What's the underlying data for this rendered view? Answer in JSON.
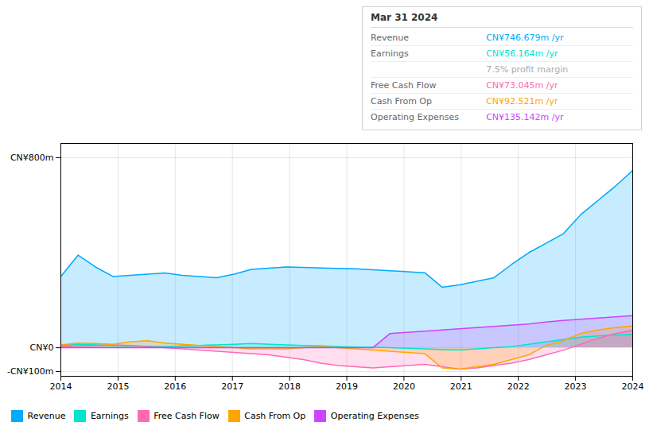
{
  "chart_data": {
    "type": "area",
    "title": "Mar 31 2024",
    "x": [
      2014,
      2014.303,
      2014.606,
      2014.909,
      2015.212,
      2015.515,
      2015.818,
      2016.121,
      2016.424,
      2016.727,
      2017.03,
      2017.333,
      2017.636,
      2017.939,
      2018.242,
      2018.545,
      2018.848,
      2019.152,
      2019.455,
      2019.758,
      2020.061,
      2020.364,
      2020.667,
      2020.97,
      2021.273,
      2021.576,
      2021.879,
      2022.182,
      2022.485,
      2022.788,
      2023.091,
      2023.394,
      2023.697,
      2024
    ],
    "series": [
      {
        "name": "Revenue",
        "color": "#00aaff",
        "values": [
          300,
          390,
          340,
          300,
          305,
          310,
          315,
          305,
          300,
          295,
          310,
          330,
          335,
          340,
          338,
          336,
          334,
          332,
          328,
          324,
          320,
          316,
          255,
          265,
          280,
          295,
          350,
          400,
          440,
          480,
          560,
          620,
          680,
          746
        ]
      },
      {
        "name": "Earnings",
        "color": "#00e5cc",
        "values": [
          10,
          15,
          12,
          10,
          8,
          6,
          5,
          8,
          10,
          12,
          15,
          18,
          15,
          12,
          10,
          8,
          5,
          3,
          2,
          0,
          -2,
          -5,
          -8,
          -10,
          -5,
          0,
          5,
          15,
          25,
          35,
          45,
          50,
          54,
          56
        ]
      },
      {
        "name": "Free Cash Flow",
        "color": "#ff69b4",
        "values": [
          5,
          8,
          10,
          12,
          10,
          5,
          0,
          -5,
          -10,
          -15,
          -20,
          -25,
          -30,
          -40,
          -50,
          -65,
          -75,
          -80,
          -85,
          -80,
          -75,
          -70,
          -80,
          -90,
          -85,
          -75,
          -65,
          -50,
          -30,
          -10,
          15,
          40,
          60,
          73
        ]
      },
      {
        "name": "Cash From Op",
        "color": "#ffa500",
        "values": [
          12,
          20,
          18,
          15,
          25,
          30,
          20,
          15,
          10,
          5,
          0,
          -5,
          -5,
          -5,
          0,
          5,
          0,
          -5,
          -10,
          -15,
          -20,
          -25,
          -85,
          -90,
          -80,
          -70,
          -50,
          -30,
          10,
          30,
          60,
          75,
          85,
          92
        ]
      },
      {
        "name": "Operating Expenses",
        "color": "#cc44ff",
        "values": [
          0,
          0,
          0,
          0,
          0,
          0,
          0,
          0,
          0,
          0,
          0,
          0,
          0,
          0,
          0,
          0,
          0,
          0,
          0,
          60,
          65,
          70,
          75,
          80,
          85,
          90,
          95,
          100,
          108,
          115,
          120,
          125,
          130,
          135
        ]
      }
    ],
    "xlim": [
      2014,
      2024
    ],
    "xticks": [
      2014,
      2015,
      2016,
      2017,
      2018,
      2019,
      2020,
      2021,
      2022,
      2023,
      2024
    ],
    "ylim": [
      -120,
      860
    ],
    "yticks": [
      {
        "value": -100,
        "label": "-CN¥100m"
      },
      {
        "value": 0,
        "label": "CN¥0"
      },
      {
        "value": 800,
        "label": "CN¥800m"
      }
    ],
    "grid": true,
    "legend": "bottom",
    "annotations": [
      {
        "label": "Revenue",
        "text": "CN¥746.679m /yr",
        "color": "#00aaff"
      },
      {
        "label": "Earnings",
        "text": "CN¥56.164m /yr",
        "color": "#00e5cc"
      },
      {
        "text": "7.5% profit margin",
        "color": "#aaaaaa"
      },
      {
        "label": "Free Cash Flow",
        "text": "CN¥73.045m /yr",
        "color": "#ff69b4"
      },
      {
        "label": "Cash From Op",
        "text": "CN¥92.521m /yr",
        "color": "#ffa500"
      },
      {
        "label": "Operating Expenses",
        "text": "CN¥135.142m /yr",
        "color": "#cc44ff"
      }
    ]
  }
}
